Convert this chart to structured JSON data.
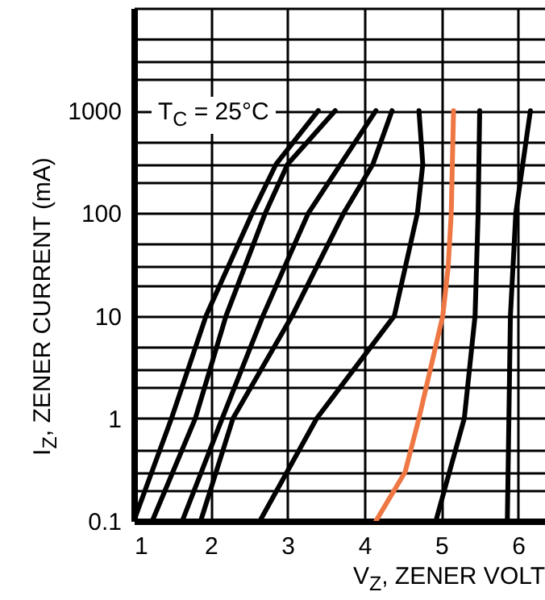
{
  "chart_data": {
    "type": "line",
    "xlabel": "V$_{Z}$, ZENER VOLT",
    "ylabel": "I$_{Z}$, ZENER CURRENT (mA)",
    "annotations": [
      "T$_{C}$ = 25°C"
    ],
    "log": "y",
    "grid": true,
    "line_style": "solid",
    "xlim": [
      1,
      6.35
    ],
    "xticks": [
      1,
      2,
      3,
      4,
      5,
      6
    ],
    "ylim": [
      0.1,
      10000
    ],
    "yticks": [
      0.1,
      {
        "value": 0.2,
        "label": null
      },
      {
        "value": 0.3,
        "label": null
      },
      {
        "value": 0.5,
        "label": null
      },
      1,
      {
        "value": 2,
        "label": null
      },
      {
        "value": 3,
        "label": null
      },
      {
        "value": 5,
        "label": null
      },
      10,
      {
        "value": 20,
        "label": null
      },
      {
        "value": 30,
        "label": null
      },
      {
        "value": 50,
        "label": null
      },
      100,
      {
        "value": 200,
        "label": null
      },
      {
        "value": 300,
        "label": null
      },
      {
        "value": 500,
        "label": null
      },
      1000,
      {
        "value": 2000,
        "label": null
      },
      {
        "value": 3000,
        "label": null
      },
      {
        "value": 5000,
        "label": null
      },
      {
        "value": 10000,
        "label": null
      }
    ],
    "series": [
      {
        "color": "#000000",
        "x": [
          1.0,
          1.49,
          1.94,
          2.54,
          2.85,
          3.4
        ],
        "values": [
          0.1,
          1,
          10,
          100,
          300,
          1000
        ]
      },
      {
        "color": "#000000",
        "x": [
          1.24,
          1.8,
          2.2,
          2.71,
          3.0,
          3.62
        ],
        "values": [
          0.1,
          1,
          10,
          100,
          300,
          1000
        ]
      },
      {
        "color": "#000000",
        "x": [
          1.63,
          2.15,
          2.68,
          3.27,
          3.69,
          4.15
        ],
        "values": [
          0.1,
          1,
          10,
          100,
          300,
          1000
        ]
      },
      {
        "color": "#000000",
        "x": [
          1.87,
          2.29,
          3.06,
          3.73,
          4.11,
          4.36
        ],
        "values": [
          0.1,
          1,
          10,
          100,
          300,
          1000
        ]
      },
      {
        "color": "#000000",
        "x": [
          2.64,
          3.38,
          4.39,
          4.69,
          4.76,
          4.71
        ],
        "values": [
          0.1,
          1,
          10,
          100,
          300,
          1000
        ]
      },
      {
        "color": "#ee7744",
        "x": [
          4.15,
          4.53,
          4.71,
          5.02,
          5.09,
          5.13,
          5.16
        ],
        "values": [
          0.1,
          0.3,
          1,
          10,
          30,
          100,
          1000
        ]
      },
      {
        "color": "#000000",
        "x": [
          4.93,
          5.3,
          5.44,
          5.48,
          5.5
        ],
        "values": [
          0.1,
          1,
          10,
          100,
          1000
        ]
      },
      {
        "color": "#000000",
        "x": [
          5.86,
          5.9,
          5.97,
          6.16
        ],
        "values": [
          0.1,
          10,
          100,
          1000
        ]
      }
    ]
  }
}
